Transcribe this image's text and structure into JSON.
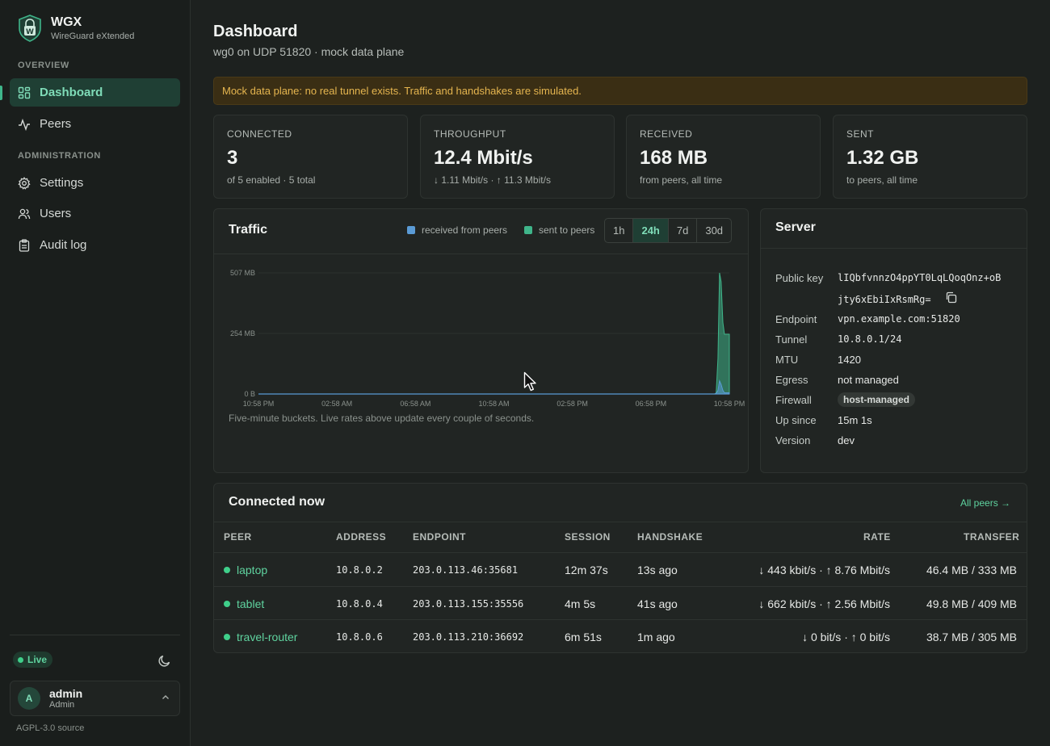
{
  "brand": {
    "name": "WGX",
    "subtitle": "WireGuard eXtended"
  },
  "nav": {
    "section_overview": "OVERVIEW",
    "section_admin": "ADMINISTRATION",
    "items": [
      {
        "label": "Dashboard",
        "icon": "dashboard-icon",
        "active": true
      },
      {
        "label": "Peers",
        "icon": "activity-icon"
      },
      {
        "label": "Settings",
        "icon": "gear-icon"
      },
      {
        "label": "Users",
        "icon": "users-icon"
      },
      {
        "label": "Audit log",
        "icon": "clipboard-icon"
      }
    ]
  },
  "status": {
    "live_label": "Live"
  },
  "user": {
    "initial": "A",
    "name": "admin",
    "role": "Admin"
  },
  "footer": {
    "license": "AGPL-3.0 source"
  },
  "page": {
    "title": "Dashboard",
    "subtitle": "wg0 on UDP 51820 · mock data plane"
  },
  "alert": {
    "text": "Mock data plane: no real tunnel exists. Traffic and handshakes are simulated."
  },
  "stats": [
    {
      "label": "CONNECTED",
      "value": "3",
      "sub": "of 5 enabled · 5 total"
    },
    {
      "label": "THROUGHPUT",
      "value": "12.4 Mbit/s",
      "sub": "↓ 1.11 Mbit/s · ↑ 11.3 Mbit/s"
    },
    {
      "label": "RECEIVED",
      "value": "168 MB",
      "sub": "from peers, all time"
    },
    {
      "label": "SENT",
      "value": "1.32 GB",
      "sub": "to peers, all time"
    }
  ],
  "traffic": {
    "title": "Traffic",
    "legend": [
      {
        "label": "received from peers",
        "color": "#5a9bd5"
      },
      {
        "label": "sent to peers",
        "color": "#3fb58a"
      }
    ],
    "ranges": [
      "1h",
      "24h",
      "7d",
      "30d"
    ],
    "active_range": "24h",
    "note": "Five-minute buckets. Live rates above update every couple of seconds."
  },
  "chart_data": {
    "type": "area",
    "title": "Traffic",
    "ylabel": "",
    "xlabel": "",
    "y_ticks": [
      "0 B",
      "254 MB",
      "507 MB"
    ],
    "x_ticks": [
      "10:58 PM",
      "02:58 AM",
      "06:58 AM",
      "10:58 AM",
      "02:58 PM",
      "06:58 PM",
      "10:58 PM"
    ],
    "ylim_mb": [
      0,
      507
    ],
    "x_hours": [
      0,
      23.25,
      23.33,
      23.42,
      23.5,
      23.58,
      23.67,
      23.75,
      24
    ],
    "series": [
      {
        "name": "received from peers",
        "color": "#5a9bd5",
        "values": [
          0,
          0,
          2,
          15,
          55,
          40,
          15,
          5,
          5
        ]
      },
      {
        "name": "sent to peers",
        "color": "#3fb58a",
        "values": [
          0,
          0,
          5,
          150,
          507,
          470,
          300,
          250,
          250
        ]
      }
    ]
  },
  "server": {
    "title": "Server",
    "rows": [
      {
        "key": "Public key",
        "value": "lIQbfvnnzO4ppYT0LqLQoqOnz+oB",
        "value2": "jty6xEbiIxRsmRg=",
        "mono": true
      },
      {
        "key": "Endpoint",
        "value": "vpn.example.com:51820",
        "mono": true
      },
      {
        "key": "Tunnel",
        "value": "10.8.0.1/24",
        "mono": true
      },
      {
        "key": "MTU",
        "value": "1420"
      },
      {
        "key": "Egress",
        "value": "not managed"
      },
      {
        "key": "Firewall",
        "value": "host-managed",
        "pill": true
      },
      {
        "key": "Up since",
        "value": "15m 1s"
      },
      {
        "key": "Version",
        "value": "dev"
      }
    ]
  },
  "connected": {
    "title": "Connected now",
    "all_peers": "All peers →",
    "columns": [
      "PEER",
      "ADDRESS",
      "ENDPOINT",
      "SESSION",
      "HANDSHAKE",
      "RATE",
      "TRANSFER"
    ],
    "rows": [
      {
        "peer": "laptop",
        "address": "10.8.0.2",
        "endpoint": "203.0.113.46:35681",
        "session": "12m 37s",
        "handshake": "13s ago",
        "rate": "↓ 443 kbit/s · ↑ 8.76 Mbit/s",
        "transfer": "46.4 MB / 333 MB"
      },
      {
        "peer": "tablet",
        "address": "10.8.0.4",
        "endpoint": "203.0.113.155:35556",
        "session": "4m 5s",
        "handshake": "41s ago",
        "rate": "↓ 662 kbit/s · ↑ 2.56 Mbit/s",
        "transfer": "49.8 MB / 409 MB"
      },
      {
        "peer": "travel-router",
        "address": "10.8.0.6",
        "endpoint": "203.0.113.210:36692",
        "session": "6m 51s",
        "handshake": "1m ago",
        "rate": "↓ 0 bit/s · ↑ 0 bit/s",
        "transfer": "38.7 MB / 305 MB"
      }
    ]
  }
}
